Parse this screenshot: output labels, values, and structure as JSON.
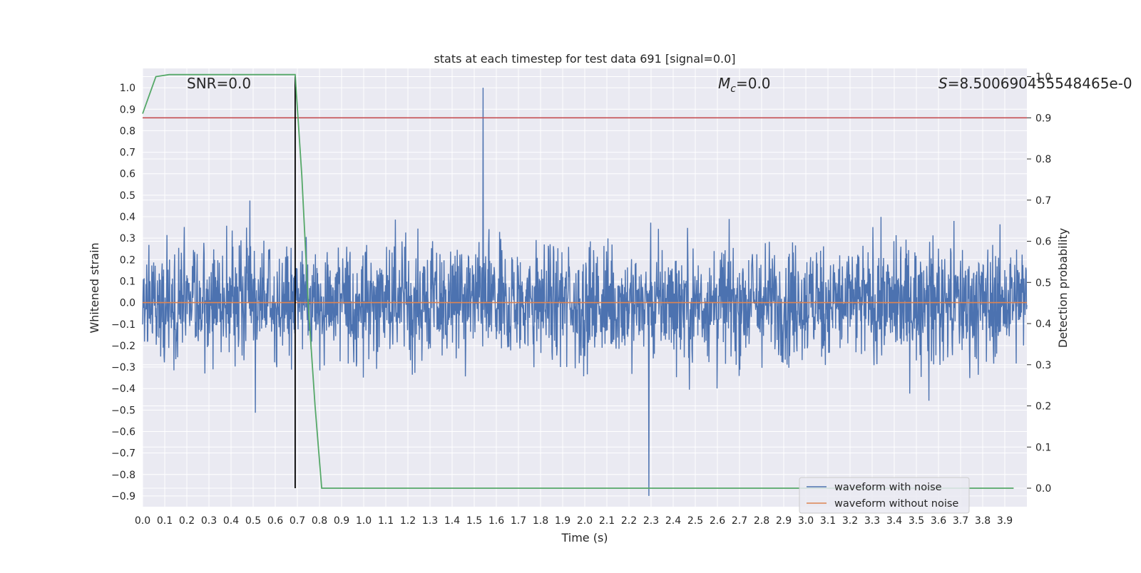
{
  "chart_data": {
    "type": "line",
    "title": "stats at each timestep for test data 691 [signal=0.0]",
    "xlabel": "Time (s)",
    "ylabel_left": "Whitened strain",
    "ylabel_right": "Detection probability",
    "xlim": [
      0.0,
      4.0
    ],
    "ylim_left": [
      -0.95,
      1.09
    ],
    "ylim_right": [
      -0.045,
      1.02
    ],
    "x_ticks": [
      "0.0",
      "0.1",
      "0.2",
      "0.3",
      "0.4",
      "0.5",
      "0.6",
      "0.7",
      "0.8",
      "0.9",
      "1.0",
      "1.1",
      "1.2",
      "1.3",
      "1.4",
      "1.5",
      "1.6",
      "1.7",
      "1.8",
      "1.9",
      "2.0",
      "2.1",
      "2.2",
      "2.3",
      "2.4",
      "2.5",
      "2.6",
      "2.7",
      "2.8",
      "2.9",
      "3.0",
      "3.1",
      "3.2",
      "3.3",
      "3.4",
      "3.5",
      "3.6",
      "3.7",
      "3.8",
      "3.9"
    ],
    "y_ticks_left": [
      "1.0",
      "0.9",
      "0.8",
      "0.7",
      "0.6",
      "0.5",
      "0.4",
      "0.3",
      "0.2",
      "0.1",
      "0.0",
      "−0.1",
      "−0.2",
      "−0.3",
      "−0.4",
      "−0.5",
      "−0.6",
      "−0.7",
      "−0.8",
      "−0.9"
    ],
    "y_ticks_right": [
      "1.0",
      "0.9",
      "0.8",
      "0.7",
      "0.6",
      "0.5",
      "0.4",
      "0.3",
      "0.2",
      "0.1",
      "0.0"
    ],
    "annotations": {
      "snr": "SNR=0.0",
      "mc_symbol": "M",
      "mc_sub": "c",
      "mc_value": "=0.0",
      "s_symbol": "S",
      "s_value": "=8.500690455548465e-0"
    },
    "series": [
      {
        "name": "waveform with noise",
        "axis": "left",
        "color": "#4c72b0",
        "description": "whitened noise samples, envelope approx ±0.45 with spikes",
        "max_spike": 1.0,
        "max_spike_time": 1.54,
        "min_spike": -0.9,
        "min_spike_time": 2.29
      },
      {
        "name": "waveform without noise",
        "axis": "left",
        "color": "#dd8452",
        "values_constant": 0.0
      },
      {
        "name": "detection probability",
        "axis": "right",
        "color": "#55a868",
        "x": [
          0.0,
          0.06,
          0.12,
          0.18,
          0.24,
          0.3,
          0.36,
          0.42,
          0.48,
          0.54,
          0.6,
          0.66,
          0.69,
          0.72,
          0.75,
          0.78,
          0.81,
          0.87,
          0.93,
          1.0,
          2.0,
          3.0,
          3.94
        ],
        "values": [
          0.91,
          1.0,
          1.005,
          1.005,
          1.005,
          1.005,
          1.005,
          1.005,
          1.005,
          1.005,
          1.005,
          1.005,
          1.005,
          0.76,
          0.44,
          0.2,
          0.0,
          0.0,
          0.0,
          0.0,
          0.0,
          0.0,
          0.0
        ]
      }
    ],
    "threshold_line": {
      "axis": "right",
      "value": 0.9,
      "color": "#c44e52"
    },
    "marker_line": {
      "x": 0.69,
      "color": "#000000",
      "from": 0.0,
      "to": 1.0,
      "axis": "right"
    },
    "legend": {
      "position": "bottom-right",
      "entries": [
        {
          "label": "waveform with noise",
          "color": "#4c72b0"
        },
        {
          "label": "waveform without noise",
          "color": "#dd8452"
        }
      ]
    },
    "style": {
      "plot_bg": "#eaeaf2",
      "grid_color": "#ffffff"
    }
  }
}
